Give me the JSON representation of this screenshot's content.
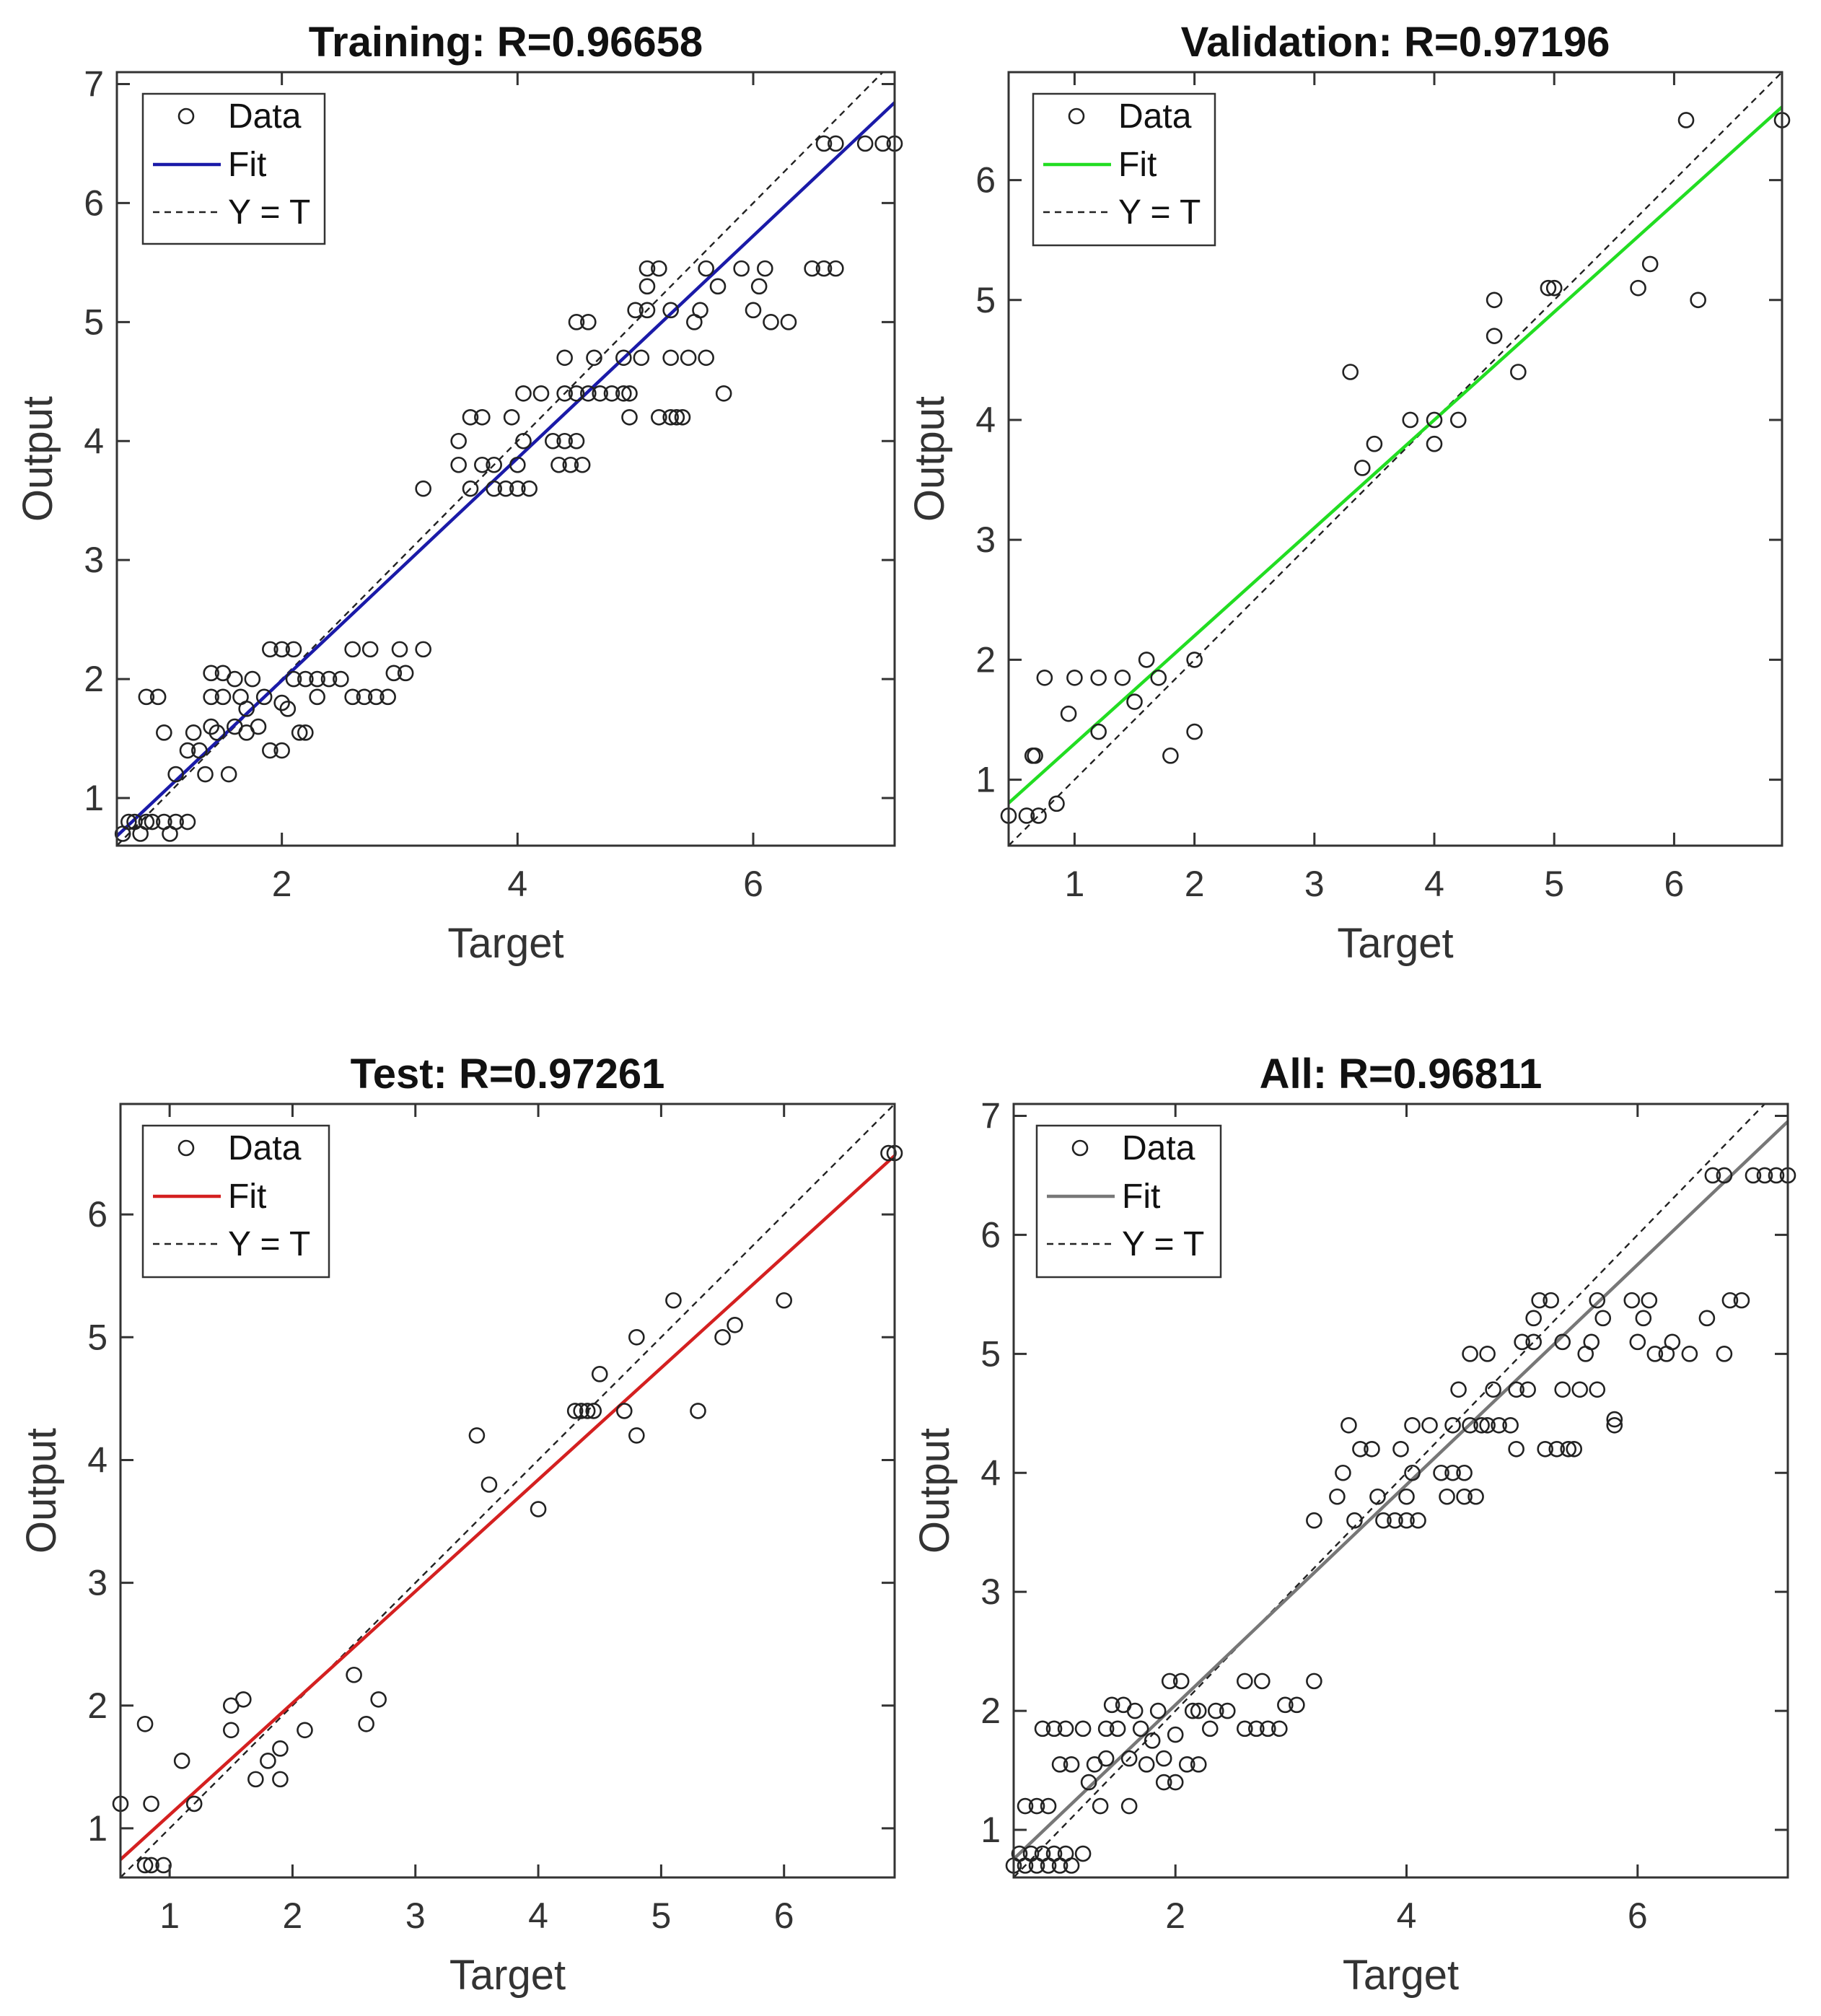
{
  "chart_data": [
    {
      "type": "scatter",
      "title": "Training: R=0.96658",
      "xlabel": "Target",
      "ylabel": "Output",
      "xlim": [
        0.6,
        7.2
      ],
      "ylim": [
        0.6,
        7.1
      ],
      "xticks": [
        2,
        4,
        6
      ],
      "yticks": [
        1,
        2,
        3,
        4,
        5,
        6,
        7
      ],
      "fit": {
        "slope": 0.934,
        "intercept": 0.12,
        "color": "#1a1aa8"
      },
      "legend": [
        "Data",
        "Fit",
        "Y = T"
      ],
      "legend_position": "top-left",
      "points": [
        [
          0.65,
          0.7
        ],
        [
          0.7,
          0.8
        ],
        [
          0.75,
          0.8
        ],
        [
          0.8,
          0.7
        ],
        [
          0.85,
          0.8
        ],
        [
          0.9,
          0.8
        ],
        [
          1.0,
          0.8
        ],
        [
          1.05,
          0.7
        ],
        [
          1.1,
          0.8
        ],
        [
          1.2,
          0.8
        ],
        [
          0.85,
          1.85
        ],
        [
          0.95,
          1.85
        ],
        [
          1.0,
          1.55
        ],
        [
          1.1,
          1.2
        ],
        [
          1.2,
          1.4
        ],
        [
          1.25,
          1.55
        ],
        [
          1.3,
          1.4
        ],
        [
          1.35,
          1.2
        ],
        [
          1.4,
          1.6
        ],
        [
          1.4,
          1.85
        ],
        [
          1.4,
          2.05
        ],
        [
          1.45,
          1.55
        ],
        [
          1.5,
          1.85
        ],
        [
          1.5,
          2.05
        ],
        [
          1.55,
          1.2
        ],
        [
          1.6,
          1.6
        ],
        [
          1.6,
          2.0
        ],
        [
          1.65,
          1.85
        ],
        [
          1.7,
          1.55
        ],
        [
          1.7,
          1.75
        ],
        [
          1.75,
          2.0
        ],
        [
          1.8,
          1.6
        ],
        [
          1.85,
          1.85
        ],
        [
          1.9,
          1.4
        ],
        [
          1.9,
          2.25
        ],
        [
          2.0,
          1.4
        ],
        [
          2.0,
          1.8
        ],
        [
          2.0,
          2.25
        ],
        [
          2.05,
          1.75
        ],
        [
          2.1,
          2.0
        ],
        [
          2.1,
          2.25
        ],
        [
          2.15,
          1.55
        ],
        [
          2.2,
          1.55
        ],
        [
          2.2,
          2.0
        ],
        [
          2.3,
          1.85
        ],
        [
          2.3,
          2.0
        ],
        [
          2.4,
          2.0
        ],
        [
          2.5,
          2.0
        ],
        [
          2.6,
          1.85
        ],
        [
          2.6,
          2.25
        ],
        [
          2.7,
          1.85
        ],
        [
          2.75,
          2.25
        ],
        [
          2.8,
          1.85
        ],
        [
          2.9,
          1.85
        ],
        [
          2.95,
          2.05
        ],
        [
          3.0,
          2.25
        ],
        [
          3.05,
          2.05
        ],
        [
          3.2,
          2.25
        ],
        [
          3.2,
          3.6
        ],
        [
          3.5,
          3.8
        ],
        [
          3.5,
          4.0
        ],
        [
          3.6,
          3.6
        ],
        [
          3.6,
          4.2
        ],
        [
          3.7,
          4.2
        ],
        [
          3.7,
          3.8
        ],
        [
          3.8,
          3.8
        ],
        [
          3.8,
          3.6
        ],
        [
          3.9,
          3.6
        ],
        [
          3.95,
          4.2
        ],
        [
          4.0,
          3.6
        ],
        [
          4.0,
          3.8
        ],
        [
          4.05,
          4.0
        ],
        [
          4.05,
          4.4
        ],
        [
          4.1,
          3.6
        ],
        [
          4.2,
          4.4
        ],
        [
          4.3,
          4.0
        ],
        [
          4.35,
          3.8
        ],
        [
          4.4,
          4.0
        ],
        [
          4.4,
          4.4
        ],
        [
          4.4,
          4.7
        ],
        [
          4.45,
          3.8
        ],
        [
          4.5,
          4.0
        ],
        [
          4.5,
          4.4
        ],
        [
          4.5,
          5.0
        ],
        [
          4.55,
          3.8
        ],
        [
          4.6,
          4.4
        ],
        [
          4.6,
          5.0
        ],
        [
          4.65,
          4.7
        ],
        [
          4.7,
          4.4
        ],
        [
          4.8,
          4.4
        ],
        [
          4.9,
          4.4
        ],
        [
          4.9,
          4.7
        ],
        [
          4.95,
          4.2
        ],
        [
          4.95,
          4.4
        ],
        [
          5.0,
          5.1
        ],
        [
          5.05,
          4.7
        ],
        [
          5.1,
          5.1
        ],
        [
          5.1,
          5.3
        ],
        [
          5.1,
          5.45
        ],
        [
          5.2,
          4.2
        ],
        [
          5.2,
          5.45
        ],
        [
          5.3,
          4.2
        ],
        [
          5.3,
          5.1
        ],
        [
          5.3,
          4.7
        ],
        [
          5.35,
          4.2
        ],
        [
          5.4,
          4.2
        ],
        [
          5.45,
          4.7
        ],
        [
          5.5,
          5.0
        ],
        [
          5.55,
          5.1
        ],
        [
          5.6,
          4.7
        ],
        [
          5.6,
          5.45
        ],
        [
          5.7,
          5.3
        ],
        [
          5.75,
          4.4
        ],
        [
          5.9,
          5.45
        ],
        [
          6.0,
          5.1
        ],
        [
          6.05,
          5.3
        ],
        [
          6.1,
          5.45
        ],
        [
          6.15,
          5.0
        ],
        [
          6.3,
          5.0
        ],
        [
          6.6,
          6.5
        ],
        [
          6.7,
          6.5
        ],
        [
          6.5,
          5.45
        ],
        [
          6.6,
          5.45
        ],
        [
          6.7,
          5.45
        ],
        [
          6.95,
          6.5
        ],
        [
          7.1,
          6.5
        ],
        [
          7.2,
          6.5
        ]
      ]
    },
    {
      "type": "scatter",
      "title": "Validation: R=0.97196",
      "xlabel": "Target",
      "ylabel": "Output",
      "xlim": [
        0.45,
        6.9
      ],
      "ylim": [
        0.45,
        6.9
      ],
      "xticks": [
        1,
        2,
        3,
        4,
        5,
        6
      ],
      "yticks": [
        1,
        2,
        3,
        4,
        5,
        6
      ],
      "fit": {
        "slope": 0.9,
        "intercept": 0.4,
        "color": "#22dd22"
      },
      "legend": [
        "Data",
        "Fit",
        "Y = T"
      ],
      "legend_position": "top-left",
      "points": [
        [
          0.45,
          0.7
        ],
        [
          0.6,
          0.7
        ],
        [
          0.7,
          0.7
        ],
        [
          0.65,
          1.2
        ],
        [
          0.67,
          1.2
        ],
        [
          0.75,
          1.85
        ],
        [
          0.85,
          0.8
        ],
        [
          0.95,
          1.55
        ],
        [
          1.0,
          1.85
        ],
        [
          1.2,
          1.4
        ],
        [
          1.2,
          1.85
        ],
        [
          1.4,
          1.85
        ],
        [
          1.5,
          1.65
        ],
        [
          1.6,
          2.0
        ],
        [
          1.7,
          1.85
        ],
        [
          1.8,
          1.2
        ],
        [
          2.0,
          1.4
        ],
        [
          2.0,
          2.0
        ],
        [
          3.3,
          4.4
        ],
        [
          3.4,
          3.6
        ],
        [
          3.5,
          3.8
        ],
        [
          3.8,
          4.0
        ],
        [
          4.0,
          3.8
        ],
        [
          4.0,
          4.0
        ],
        [
          4.2,
          4.0
        ],
        [
          4.5,
          4.7
        ],
        [
          4.5,
          5.0
        ],
        [
          4.7,
          4.4
        ],
        [
          4.95,
          5.1
        ],
        [
          5.0,
          5.1
        ],
        [
          5.7,
          5.1
        ],
        [
          5.8,
          5.3
        ],
        [
          6.1,
          6.5
        ],
        [
          6.2,
          5.0
        ],
        [
          6.9,
          6.5
        ]
      ]
    },
    {
      "type": "scatter",
      "title": "Test: R=0.97261",
      "xlabel": "Target",
      "ylabel": "Output",
      "xlim": [
        0.6,
        6.9
      ],
      "ylim": [
        0.6,
        6.9
      ],
      "xticks": [
        1,
        2,
        3,
        4,
        5,
        6
      ],
      "yticks": [
        1,
        2,
        3,
        4,
        5,
        6
      ],
      "fit": {
        "slope": 0.91,
        "intercept": 0.2,
        "color": "#d42020"
      },
      "legend": [
        "Data",
        "Fit",
        "Y = T"
      ],
      "legend_position": "top-left",
      "points": [
        [
          0.6,
          1.2
        ],
        [
          0.8,
          1.85
        ],
        [
          0.8,
          0.7
        ],
        [
          0.85,
          0.7
        ],
        [
          0.85,
          1.2
        ],
        [
          0.95,
          0.7
        ],
        [
          1.1,
          1.55
        ],
        [
          1.2,
          1.2
        ],
        [
          1.5,
          1.8
        ],
        [
          1.5,
          2.0
        ],
        [
          1.6,
          2.05
        ],
        [
          1.7,
          1.4
        ],
        [
          1.8,
          1.55
        ],
        [
          1.9,
          1.65
        ],
        [
          1.9,
          1.4
        ],
        [
          2.1,
          1.8
        ],
        [
          2.5,
          2.25
        ],
        [
          2.6,
          1.85
        ],
        [
          2.7,
          2.05
        ],
        [
          3.5,
          4.2
        ],
        [
          3.6,
          3.8
        ],
        [
          4.0,
          3.6
        ],
        [
          4.3,
          4.4
        ],
        [
          4.35,
          4.4
        ],
        [
          4.4,
          4.4
        ],
        [
          4.45,
          4.4
        ],
        [
          4.5,
          4.7
        ],
        [
          4.7,
          4.4
        ],
        [
          4.8,
          4.2
        ],
        [
          4.8,
          5.0
        ],
        [
          5.1,
          5.3
        ],
        [
          5.3,
          4.4
        ],
        [
          5.5,
          5.0
        ],
        [
          5.6,
          5.1
        ],
        [
          6.0,
          5.3
        ],
        [
          6.85,
          6.5
        ],
        [
          6.9,
          6.5
        ]
      ]
    },
    {
      "type": "scatter",
      "title": "All: R=0.96811",
      "xlabel": "Target",
      "ylabel": "Output",
      "xlim": [
        0.6,
        7.3
      ],
      "ylim": [
        0.6,
        7.1
      ],
      "xticks": [
        2,
        4,
        6
      ],
      "yticks": [
        1,
        2,
        3,
        4,
        5,
        6,
        7
      ],
      "fit": {
        "slope": 0.925,
        "intercept": 0.2,
        "color": "#777777"
      },
      "legend": [
        "Data",
        "Fit",
        "Y = T"
      ],
      "legend_position": "top-left",
      "points": [
        [
          0.6,
          0.7
        ],
        [
          0.65,
          0.8
        ],
        [
          0.7,
          0.7
        ],
        [
          0.75,
          0.8
        ],
        [
          0.8,
          0.7
        ],
        [
          0.85,
          0.8
        ],
        [
          0.9,
          0.7
        ],
        [
          0.95,
          0.8
        ],
        [
          1.0,
          0.7
        ],
        [
          1.05,
          0.8
        ],
        [
          1.1,
          0.7
        ],
        [
          1.2,
          0.8
        ],
        [
          0.7,
          1.2
        ],
        [
          0.8,
          1.2
        ],
        [
          0.9,
          1.2
        ],
        [
          0.85,
          1.85
        ],
        [
          0.95,
          1.85
        ],
        [
          1.0,
          1.55
        ],
        [
          1.05,
          1.85
        ],
        [
          1.1,
          1.55
        ],
        [
          1.2,
          1.85
        ],
        [
          1.25,
          1.4
        ],
        [
          1.3,
          1.55
        ],
        [
          1.35,
          1.2
        ],
        [
          1.4,
          1.6
        ],
        [
          1.4,
          1.85
        ],
        [
          1.45,
          2.05
        ],
        [
          1.5,
          1.85
        ],
        [
          1.55,
          2.05
        ],
        [
          1.6,
          1.2
        ],
        [
          1.6,
          1.6
        ],
        [
          1.65,
          2.0
        ],
        [
          1.7,
          1.85
        ],
        [
          1.75,
          1.55
        ],
        [
          1.8,
          1.75
        ],
        [
          1.85,
          2.0
        ],
        [
          1.9,
          1.4
        ],
        [
          1.9,
          1.6
        ],
        [
          1.95,
          2.25
        ],
        [
          2.0,
          1.4
        ],
        [
          2.0,
          1.8
        ],
        [
          2.05,
          2.25
        ],
        [
          2.1,
          1.55
        ],
        [
          2.15,
          2.0
        ],
        [
          2.2,
          1.55
        ],
        [
          2.2,
          2.0
        ],
        [
          2.3,
          1.85
        ],
        [
          2.35,
          2.0
        ],
        [
          2.45,
          2.0
        ],
        [
          2.6,
          1.85
        ],
        [
          2.6,
          2.25
        ],
        [
          2.7,
          1.85
        ],
        [
          2.75,
          2.25
        ],
        [
          2.8,
          1.85
        ],
        [
          2.9,
          1.85
        ],
        [
          2.95,
          2.05
        ],
        [
          3.05,
          2.05
        ],
        [
          3.2,
          2.25
        ],
        [
          3.2,
          3.6
        ],
        [
          3.4,
          3.8
        ],
        [
          3.45,
          4.0
        ],
        [
          3.5,
          4.4
        ],
        [
          3.55,
          3.6
        ],
        [
          3.6,
          4.2
        ],
        [
          3.7,
          4.2
        ],
        [
          3.75,
          3.8
        ],
        [
          3.8,
          3.6
        ],
        [
          3.9,
          3.6
        ],
        [
          3.95,
          4.2
        ],
        [
          4.0,
          3.6
        ],
        [
          4.0,
          3.8
        ],
        [
          4.05,
          4.0
        ],
        [
          4.05,
          4.4
        ],
        [
          4.1,
          3.6
        ],
        [
          4.2,
          4.4
        ],
        [
          4.3,
          4.0
        ],
        [
          4.35,
          3.8
        ],
        [
          4.4,
          4.0
        ],
        [
          4.4,
          4.4
        ],
        [
          4.45,
          4.7
        ],
        [
          4.5,
          3.8
        ],
        [
          4.5,
          4.0
        ],
        [
          4.55,
          4.4
        ],
        [
          4.55,
          5.0
        ],
        [
          4.6,
          3.8
        ],
        [
          4.65,
          4.4
        ],
        [
          4.7,
          4.4
        ],
        [
          4.7,
          5.0
        ],
        [
          4.75,
          4.7
        ],
        [
          4.8,
          4.4
        ],
        [
          4.9,
          4.4
        ],
        [
          4.95,
          4.7
        ],
        [
          4.95,
          4.2
        ],
        [
          5.0,
          5.1
        ],
        [
          5.05,
          4.7
        ],
        [
          5.1,
          5.1
        ],
        [
          5.1,
          5.3
        ],
        [
          5.15,
          5.45
        ],
        [
          5.2,
          4.2
        ],
        [
          5.25,
          5.45
        ],
        [
          5.3,
          4.2
        ],
        [
          5.35,
          5.1
        ],
        [
          5.35,
          4.7
        ],
        [
          5.4,
          4.2
        ],
        [
          5.45,
          4.2
        ],
        [
          5.5,
          4.7
        ],
        [
          5.55,
          5.0
        ],
        [
          5.6,
          5.1
        ],
        [
          5.65,
          4.7
        ],
        [
          5.65,
          5.45
        ],
        [
          5.7,
          5.3
        ],
        [
          5.8,
          4.4
        ],
        [
          5.8,
          4.45
        ],
        [
          5.95,
          5.45
        ],
        [
          6.0,
          5.1
        ],
        [
          6.05,
          5.3
        ],
        [
          6.1,
          5.45
        ],
        [
          6.15,
          5.0
        ],
        [
          6.25,
          5.0
        ],
        [
          6.3,
          5.1
        ],
        [
          6.45,
          5.0
        ],
        [
          6.6,
          5.3
        ],
        [
          6.65,
          6.5
        ],
        [
          6.75,
          6.5
        ],
        [
          6.8,
          5.45
        ],
        [
          6.9,
          5.45
        ],
        [
          6.75,
          5.0
        ],
        [
          7.0,
          6.5
        ],
        [
          7.1,
          6.5
        ],
        [
          7.2,
          6.5
        ],
        [
          7.3,
          6.5
        ]
      ]
    }
  ]
}
